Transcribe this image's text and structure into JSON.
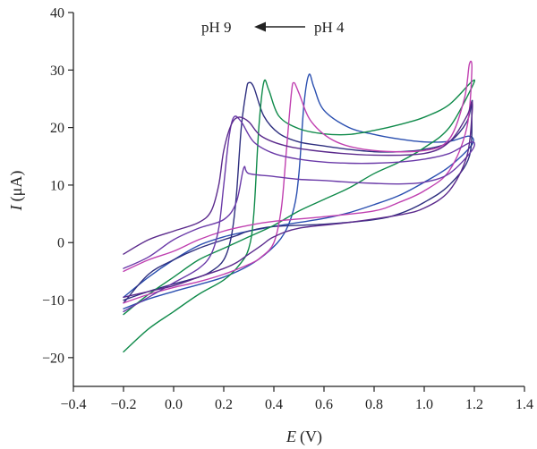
{
  "chart_data": {
    "type": "line",
    "title": "",
    "xlabel_symbol": "E",
    "xlabel_unit": "(V)",
    "ylabel_symbol": "I",
    "ylabel_unit": "(μA)",
    "xlim": [
      -0.4,
      1.4
    ],
    "ylim": [
      -25,
      40
    ],
    "x_ticks": [
      -0.4,
      -0.2,
      0.0,
      0.2,
      0.4,
      0.6,
      0.8,
      1.0,
      1.2,
      1.4
    ],
    "x_tick_labels": [
      "−0.4",
      "−0.2",
      "0.0",
      "0.2",
      "0.4",
      "0.6",
      "0.8",
      "1.0",
      "1.2",
      "1.4"
    ],
    "y_ticks": [
      -20,
      -10,
      0,
      10,
      20,
      30,
      40
    ],
    "y_tick_labels": [
      "−20",
      "−10",
      "0",
      "10",
      "20",
      "30",
      "40"
    ],
    "grid": false,
    "annotation": {
      "left": "pH 9",
      "right": "pH 4",
      "arrow_direction": "left"
    },
    "series": [
      {
        "color": "#2a4fb0",
        "forward": [
          [
            -0.2,
            -11.5
          ],
          [
            -0.1,
            -9.8
          ],
          [
            0.0,
            -8.5
          ],
          [
            0.1,
            -7.3
          ],
          [
            0.2,
            -6.0
          ],
          [
            0.3,
            -4.0
          ],
          [
            0.38,
            -1.5
          ],
          [
            0.44,
            1.5
          ],
          [
            0.48,
            6.0
          ],
          [
            0.5,
            12.0
          ],
          [
            0.52,
            24.0
          ],
          [
            0.54,
            29.2
          ],
          [
            0.56,
            27.0
          ],
          [
            0.6,
            23.0
          ],
          [
            0.7,
            20.0
          ],
          [
            0.8,
            18.8
          ],
          [
            0.9,
            18.0
          ],
          [
            1.0,
            17.5
          ],
          [
            1.1,
            17.6
          ],
          [
            1.18,
            18.5
          ]
        ],
        "reverse": [
          [
            1.19,
            17.0
          ],
          [
            1.1,
            13.2
          ],
          [
            1.0,
            10.5
          ],
          [
            0.9,
            8.2
          ],
          [
            0.8,
            6.6
          ],
          [
            0.7,
            5.2
          ],
          [
            0.6,
            4.2
          ],
          [
            0.5,
            3.5
          ],
          [
            0.4,
            2.8
          ],
          [
            0.3,
            2.0
          ],
          [
            0.2,
            1.0
          ],
          [
            0.1,
            -0.5
          ],
          [
            0.0,
            -3.0
          ],
          [
            -0.1,
            -6.0
          ],
          [
            -0.2,
            -9.5
          ]
        ]
      },
      {
        "color": "#2e2f7f",
        "forward": [
          [
            -0.2,
            -10.0
          ],
          [
            -0.1,
            -8.5
          ],
          [
            0.0,
            -7.2
          ],
          [
            0.1,
            -6.0
          ],
          [
            0.15,
            -5.0
          ],
          [
            0.2,
            -3.0
          ],
          [
            0.23,
            1.0
          ],
          [
            0.25,
            8.0
          ],
          [
            0.27,
            20.0
          ],
          [
            0.29,
            26.5
          ],
          [
            0.3,
            27.8
          ],
          [
            0.32,
            27.0
          ],
          [
            0.36,
            22.0
          ],
          [
            0.42,
            19.0
          ],
          [
            0.5,
            17.5
          ],
          [
            0.6,
            16.8
          ],
          [
            0.7,
            16.2
          ],
          [
            0.8,
            15.8
          ],
          [
            0.9,
            15.8
          ],
          [
            1.0,
            16.2
          ],
          [
            1.1,
            17.5
          ],
          [
            1.17,
            21.0
          ],
          [
            1.19,
            24.6
          ]
        ],
        "reverse": [
          [
            1.19,
            23.0
          ],
          [
            1.18,
            15.0
          ],
          [
            1.1,
            10.0
          ],
          [
            1.0,
            7.0
          ],
          [
            0.9,
            5.0
          ],
          [
            0.8,
            4.0
          ],
          [
            0.6,
            3.2
          ],
          [
            0.4,
            2.8
          ],
          [
            0.3,
            2.0
          ],
          [
            0.25,
            1.2
          ],
          [
            0.2,
            0.5
          ],
          [
            0.1,
            -1.0
          ],
          [
            0.0,
            -3.0
          ],
          [
            -0.1,
            -5.5
          ],
          [
            -0.2,
            -10.5
          ]
        ]
      },
      {
        "color": "#0f8a4a",
        "forward": [
          [
            -0.2,
            -19.0
          ],
          [
            -0.1,
            -15.0
          ],
          [
            0.0,
            -12.0
          ],
          [
            0.1,
            -9.0
          ],
          [
            0.2,
            -6.5
          ],
          [
            0.26,
            -4.0
          ],
          [
            0.3,
            -1.0
          ],
          [
            0.32,
            5.0
          ],
          [
            0.34,
            20.0
          ],
          [
            0.36,
            27.9
          ],
          [
            0.38,
            26.5
          ],
          [
            0.42,
            22.0
          ],
          [
            0.5,
            19.8
          ],
          [
            0.6,
            18.9
          ],
          [
            0.7,
            18.8
          ],
          [
            0.8,
            19.5
          ],
          [
            0.9,
            20.5
          ],
          [
            1.0,
            21.8
          ],
          [
            1.1,
            24.0
          ],
          [
            1.19,
            28.0
          ]
        ],
        "reverse": [
          [
            1.19,
            27.0
          ],
          [
            1.1,
            20.0
          ],
          [
            1.0,
            16.5
          ],
          [
            0.9,
            14.0
          ],
          [
            0.8,
            12.0
          ],
          [
            0.7,
            9.5
          ],
          [
            0.6,
            7.5
          ],
          [
            0.5,
            5.5
          ],
          [
            0.4,
            3.0
          ],
          [
            0.3,
            1.0
          ],
          [
            0.2,
            -1.0
          ],
          [
            0.1,
            -3.0
          ],
          [
            0.0,
            -6.0
          ],
          [
            -0.1,
            -9.0
          ],
          [
            -0.2,
            -12.5
          ]
        ]
      },
      {
        "color": "#c040b0",
        "forward": [
          [
            -0.2,
            -10.5
          ],
          [
            -0.1,
            -9.0
          ],
          [
            0.0,
            -7.8
          ],
          [
            0.1,
            -6.8
          ],
          [
            0.2,
            -5.5
          ],
          [
            0.3,
            -3.8
          ],
          [
            0.35,
            -2.5
          ],
          [
            0.4,
            0.0
          ],
          [
            0.43,
            6.0
          ],
          [
            0.45,
            16.0
          ],
          [
            0.47,
            26.0
          ],
          [
            0.48,
            27.8
          ],
          [
            0.5,
            26.0
          ],
          [
            0.55,
            21.0
          ],
          [
            0.65,
            17.5
          ],
          [
            0.8,
            16.0
          ],
          [
            1.0,
            16.0
          ],
          [
            1.1,
            18.0
          ],
          [
            1.16,
            25.0
          ],
          [
            1.18,
            31.0
          ]
        ],
        "reverse": [
          [
            1.19,
            30.0
          ],
          [
            1.17,
            20.0
          ],
          [
            1.1,
            12.5
          ],
          [
            1.0,
            9.0
          ],
          [
            0.9,
            7.0
          ],
          [
            0.8,
            5.5
          ],
          [
            0.6,
            4.5
          ],
          [
            0.4,
            3.7
          ],
          [
            0.3,
            3.0
          ],
          [
            0.2,
            2.0
          ],
          [
            0.1,
            0.5
          ],
          [
            0.0,
            -1.5
          ],
          [
            -0.1,
            -3.0
          ],
          [
            -0.2,
            -5.0
          ]
        ]
      },
      {
        "color": "#6a3aa8",
        "forward": [
          [
            -0.2,
            -12.0
          ],
          [
            -0.1,
            -9.5
          ],
          [
            0.0,
            -7.0
          ],
          [
            0.1,
            -4.5
          ],
          [
            0.15,
            -2.0
          ],
          [
            0.18,
            2.5
          ],
          [
            0.2,
            10.0
          ],
          [
            0.22,
            18.0
          ],
          [
            0.24,
            21.8
          ],
          [
            0.27,
            21.0
          ],
          [
            0.32,
            17.5
          ],
          [
            0.4,
            15.5
          ],
          [
            0.5,
            14.5
          ],
          [
            0.6,
            14.0
          ],
          [
            0.7,
            13.8
          ],
          [
            0.8,
            13.8
          ],
          [
            0.9,
            14.0
          ],
          [
            1.0,
            14.5
          ],
          [
            1.1,
            15.5
          ],
          [
            1.19,
            17.5
          ]
        ],
        "reverse": [
          [
            1.19,
            16.0
          ],
          [
            1.1,
            12.0
          ],
          [
            1.0,
            10.5
          ],
          [
            0.9,
            10.2
          ],
          [
            0.8,
            10.3
          ],
          [
            0.7,
            10.5
          ],
          [
            0.6,
            10.8
          ],
          [
            0.5,
            11.0
          ],
          [
            0.4,
            11.5
          ],
          [
            0.3,
            12.0
          ],
          [
            0.28,
            13.0
          ],
          [
            0.25,
            7.0
          ],
          [
            0.2,
            4.0
          ],
          [
            0.1,
            2.5
          ],
          [
            0.0,
            0.5
          ],
          [
            -0.1,
            -2.5
          ],
          [
            -0.2,
            -4.5
          ]
        ]
      },
      {
        "color": "#5b2a8c",
        "forward": [
          [
            -0.2,
            -2.0
          ],
          [
            -0.1,
            0.5
          ],
          [
            0.0,
            2.0
          ],
          [
            0.1,
            3.5
          ],
          [
            0.15,
            5.5
          ],
          [
            0.18,
            10.0
          ],
          [
            0.2,
            16.0
          ],
          [
            0.23,
            20.5
          ],
          [
            0.26,
            21.8
          ],
          [
            0.3,
            21.0
          ],
          [
            0.35,
            18.5
          ],
          [
            0.45,
            16.8
          ],
          [
            0.6,
            15.8
          ],
          [
            0.8,
            15.2
          ],
          [
            1.0,
            15.5
          ],
          [
            1.1,
            17.5
          ],
          [
            1.17,
            22.0
          ],
          [
            1.19,
            24.5
          ]
        ],
        "reverse": [
          [
            1.19,
            22.0
          ],
          [
            1.17,
            15.0
          ],
          [
            1.1,
            9.0
          ],
          [
            1.0,
            6.0
          ],
          [
            0.9,
            4.8
          ],
          [
            0.7,
            3.5
          ],
          [
            0.5,
            2.5
          ],
          [
            0.4,
            1.0
          ],
          [
            0.35,
            -0.5
          ],
          [
            0.3,
            -2.0
          ],
          [
            0.25,
            -3.5
          ],
          [
            0.2,
            -4.5
          ],
          [
            0.1,
            -6.0
          ],
          [
            0.0,
            -7.5
          ],
          [
            -0.1,
            -8.5
          ],
          [
            -0.2,
            -9.5
          ]
        ]
      }
    ]
  }
}
